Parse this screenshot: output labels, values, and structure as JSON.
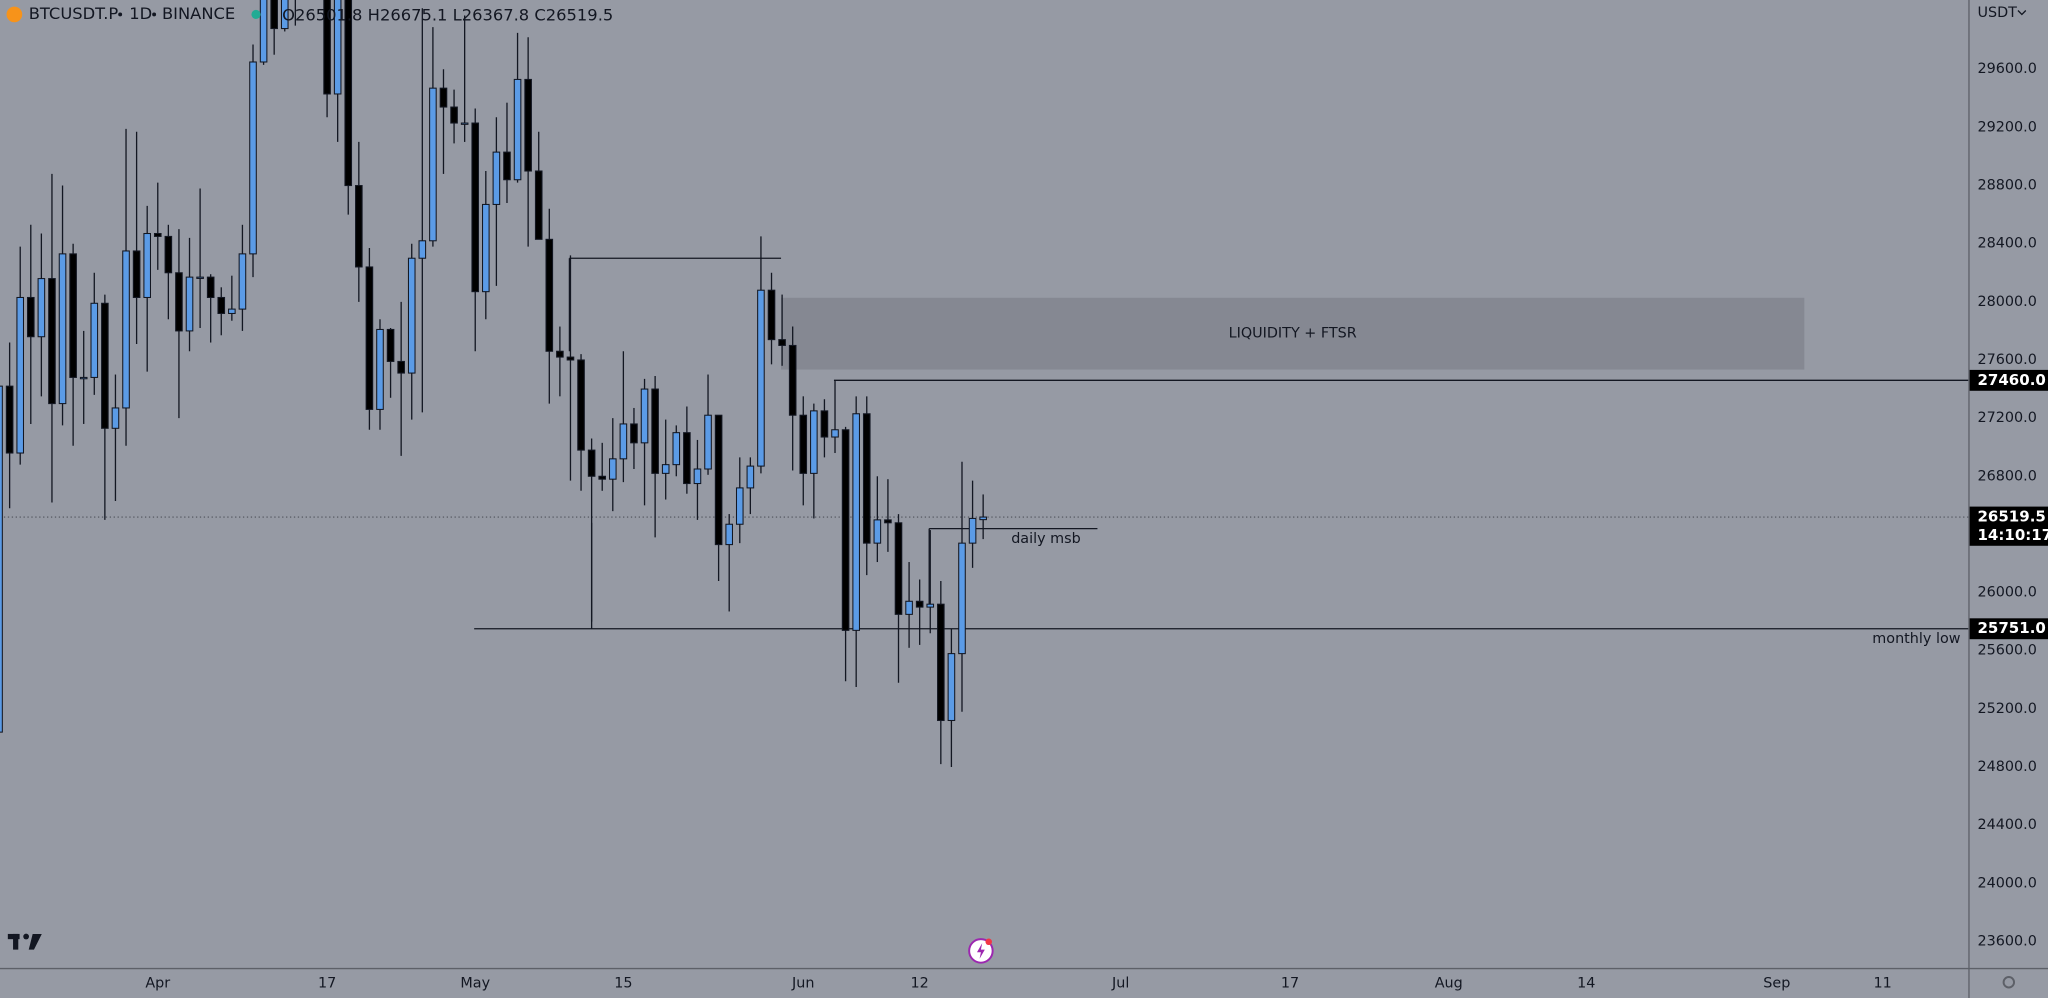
{
  "header": {
    "symbol": "BTCUSDT.P",
    "interval": "1D",
    "exchange": "BINANCE",
    "ohlc_labels": [
      "O",
      "H",
      "L",
      "C"
    ]
  },
  "chart_data": {
    "type": "candlestick",
    "up_color": "#5b9be6",
    "down_color": "#000000",
    "series": {
      "open": [
        25040,
        27420,
        26960,
        28030,
        27760,
        28160,
        27300,
        28330,
        27480,
        27480,
        27990,
        27130,
        27270,
        28350,
        28030,
        28470,
        28450,
        28200,
        27800,
        28170,
        28170,
        28030,
        27920,
        27950,
        28330,
        29650,
        30230,
        29880,
        30390,
        30480,
        30310,
        30320,
        29430,
        30380,
        28800,
        28240,
        27260,
        27810,
        27590,
        27510,
        28300,
        28420,
        29470,
        29340,
        29230,
        29230,
        28070,
        28670,
        29030,
        28840,
        29530,
        28900,
        28430,
        27660,
        27620,
        27600,
        26980,
        26800,
        26780,
        26920,
        27160,
        27030,
        27400,
        26820,
        26880,
        27100,
        26750,
        26850,
        27220,
        26330,
        26470,
        26720,
        26870,
        28080,
        27740,
        27700,
        27220,
        26820,
        27250,
        27070,
        27120,
        25740,
        27230,
        26340,
        26500,
        26480,
        25850,
        25940,
        25900,
        25920,
        25120,
        25580,
        26340,
        26501.8
      ],
      "high": [
        27750,
        27720,
        28380,
        28530,
        28470,
        28880,
        28800,
        28400,
        27800,
        28200,
        28050,
        27500,
        29190,
        29170,
        28660,
        28820,
        28530,
        28500,
        28440,
        28780,
        28190,
        28100,
        28180,
        28530,
        29770,
        30550,
        30480,
        30620,
        31000,
        30600,
        30550,
        30320,
        30480,
        30410,
        29100,
        28370,
        27880,
        27820,
        28000,
        28400,
        30020,
        29890,
        29600,
        29460,
        29970,
        29330,
        28900,
        29270,
        29370,
        29850,
        29820,
        29170,
        28640,
        27830,
        28320,
        27640,
        27060,
        27030,
        27200,
        27660,
        27270,
        27470,
        27490,
        27190,
        27150,
        27280,
        27050,
        27500,
        27220,
        26540,
        26930,
        26930,
        28450,
        28200,
        28050,
        27830,
        27350,
        27300,
        27330,
        27460,
        27140,
        27350,
        27350,
        26800,
        26780,
        26540,
        26210,
        26090,
        26430,
        26080,
        25750,
        26900,
        26770,
        26675.1
      ],
      "low": [
        24890,
        26580,
        26880,
        27160,
        27350,
        26620,
        27150,
        27010,
        27160,
        27360,
        26500,
        26630,
        27010,
        27710,
        27520,
        28220,
        27880,
        27200,
        27660,
        27820,
        27720,
        27770,
        27870,
        27800,
        28170,
        29630,
        29700,
        29860,
        29900,
        30220,
        30120,
        29270,
        29100,
        28600,
        28000,
        27120,
        27120,
        27340,
        26940,
        27190,
        27240,
        28380,
        28880,
        29090,
        29100,
        27660,
        27880,
        28110,
        28680,
        28820,
        28380,
        28430,
        27300,
        27350,
        26770,
        26700,
        25800,
        26700,
        26560,
        26760,
        26850,
        26600,
        26380,
        26640,
        26800,
        26680,
        26500,
        26810,
        26080,
        25870,
        26340,
        26540,
        26820,
        27570,
        27560,
        26840,
        26600,
        26510,
        26930,
        26960,
        25390,
        25350,
        26120,
        26210,
        26280,
        25380,
        25620,
        25640,
        25720,
        24820,
        24800,
        25180,
        26170,
        26367.8
      ],
      "close": [
        27420,
        26960,
        28030,
        27760,
        28160,
        27300,
        28330,
        27480,
        27480,
        27990,
        27130,
        27270,
        28350,
        28030,
        28470,
        28450,
        28200,
        27800,
        28170,
        28170,
        28030,
        27920,
        27950,
        28330,
        29650,
        30230,
        29880,
        30390,
        30480,
        30310,
        30320,
        29430,
        30380,
        28800,
        28240,
        27260,
        27810,
        27590,
        27510,
        28300,
        28420,
        29470,
        29340,
        29230,
        29230,
        28070,
        28670,
        29030,
        28840,
        29530,
        28900,
        28430,
        27660,
        27620,
        27600,
        26980,
        26800,
        26780,
        26920,
        27160,
        27030,
        27400,
        26820,
        26880,
        27100,
        26750,
        26850,
        27220,
        26330,
        26470,
        26720,
        26870,
        28080,
        27740,
        27700,
        27220,
        26820,
        27250,
        27070,
        27120,
        25740,
        27230,
        26340,
        26500,
        26480,
        25850,
        25940,
        25900,
        25920,
        25120,
        25580,
        26340,
        26510,
        26519.5
      ]
    },
    "xlim": [
      0.09,
      186.1
    ],
    "xticks": [
      {
        "value": 15,
        "label": "Apr"
      },
      {
        "value": 31,
        "label": "17"
      },
      {
        "value": 45,
        "label": "May"
      },
      {
        "value": 59,
        "label": "15"
      },
      {
        "value": 76,
        "label": "Jun"
      },
      {
        "value": 87,
        "label": "12"
      },
      {
        "value": 106,
        "label": "Jul"
      },
      {
        "value": 122,
        "label": "17"
      },
      {
        "value": 137,
        "label": "Aug"
      },
      {
        "value": 150,
        "label": "14"
      },
      {
        "value": 168,
        "label": "Sep"
      },
      {
        "value": 178,
        "label": "11"
      }
    ],
    "ylim": [
      23418,
      30076
    ],
    "yticks": [
      {
        "value": 23600,
        "label": "23600.0"
      },
      {
        "value": 24000,
        "label": "24000.0"
      },
      {
        "value": 24400,
        "label": "24400.0"
      },
      {
        "value": 24800,
        "label": "24800.0"
      },
      {
        "value": 25200,
        "label": "25200.0"
      },
      {
        "value": 25600,
        "label": "25600.0"
      },
      {
        "value": 26000,
        "label": "26000.0"
      },
      {
        "value": 26800,
        "label": "26800.0"
      },
      {
        "value": 27200,
        "label": "27200.0"
      },
      {
        "value": 27600,
        "label": "27600.0"
      },
      {
        "value": 28000,
        "label": "28000.0"
      },
      {
        "value": 28400,
        "label": "28400.0"
      },
      {
        "value": 28800,
        "label": "28800.0"
      },
      {
        "value": 29200,
        "label": "29200.0"
      },
      {
        "value": 29600,
        "label": "29600.0"
      }
    ],
    "currency": "USDT",
    "countdown": "14:10:17",
    "price_labels": [
      {
        "value": 27460,
        "label": "27460.0"
      },
      {
        "value": 25751,
        "label": "25751.0"
      }
    ],
    "drawings": [
      {
        "x": [
          44.9,
          186.1
        ],
        "y": [
          25751,
          25751
        ],
        "text": "monthly low"
      },
      {
        "x": [
          78.9,
          186.1
        ],
        "y": [
          27460,
          27460
        ]
      },
      {
        "x": [
          87.9,
          103.8
        ],
        "y": [
          26440,
          26440
        ],
        "text": "daily msb"
      },
      {
        "x": [
          53.9,
          73.9
        ],
        "y": [
          28300,
          28300
        ]
      },
      {
        "x": [
          53.9,
          53.9
        ],
        "y": [
          28300,
          27660
        ]
      },
      {
        "x": [
          56,
          56
        ],
        "y": [
          26480,
          25751
        ]
      },
      {
        "x": [
          87.9,
          87.9
        ],
        "y": [
          26440,
          25900
        ]
      }
    ],
    "zone": {
      "x": [
        73.9,
        170.6
      ],
      "y": [
        27534,
        28028
      ],
      "label": "LIQUIDITY + FTSR"
    }
  }
}
